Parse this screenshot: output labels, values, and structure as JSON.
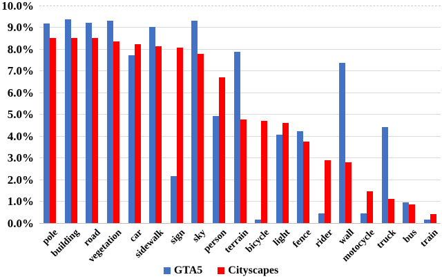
{
  "chart_data": {
    "type": "bar",
    "title": "",
    "xlabel": "",
    "ylabel": "",
    "ylim": [
      0,
      10
    ],
    "grid": true,
    "top_gridline_style": "dashed",
    "gridline_color": "#d9d9d9",
    "legend_position": "bottom",
    "ytick_labels": [
      "0.0%",
      "1.0%",
      "2.0%",
      "3.0%",
      "4.0%",
      "5.0%",
      "6.0%",
      "7.0%",
      "8.0%",
      "9.0%",
      "10.0%"
    ],
    "categories": [
      "pole",
      "building",
      "road",
      "vegetation",
      "car",
      "sidewalk",
      "sign",
      "sky",
      "person",
      "terrain",
      "bicycle",
      "light",
      "fence",
      "rider",
      "wall",
      "motocycle",
      "truck",
      "bus",
      "train"
    ],
    "series": [
      {
        "name": "GTA5",
        "color": "#4472C4",
        "values": [
          9.15,
          9.35,
          9.2,
          9.3,
          7.7,
          9.0,
          2.15,
          9.3,
          4.9,
          7.85,
          0.15,
          4.05,
          4.2,
          0.45,
          7.35,
          0.45,
          4.4,
          0.95,
          0.15
        ]
      },
      {
        "name": "Cityscapes",
        "color": "#FF0000",
        "values": [
          8.5,
          8.5,
          8.5,
          8.35,
          8.2,
          8.1,
          8.05,
          7.75,
          6.7,
          4.75,
          4.7,
          4.6,
          3.75,
          2.9,
          2.8,
          1.45,
          1.1,
          0.85,
          0.4
        ]
      }
    ]
  }
}
